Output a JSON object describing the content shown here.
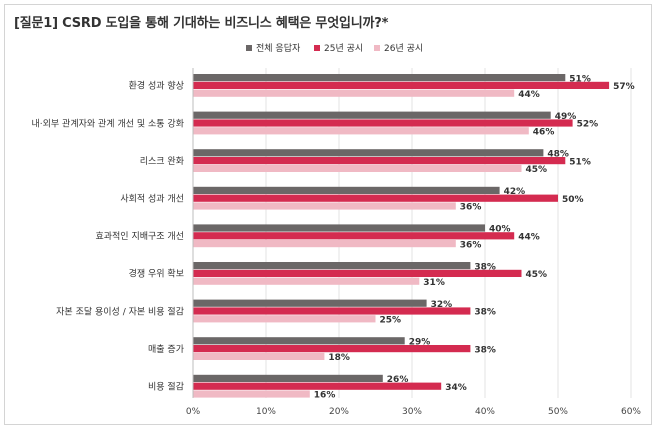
{
  "title": "[질문1] CSRD 도입을 통해 기대하는 비즈니스 혜택은 무엇입니까?*",
  "chart_data": {
    "type": "bar",
    "orientation": "horizontal",
    "categories": [
      "환경 성과 향상",
      "내·외부 관계자와 관계 개선 및 소통 강화",
      "리스크 완화",
      "사회적 성과 개선",
      "효과적인 지배구조 개선",
      "경쟁 우위 확보",
      "자본 조달 용이성 / 자본 비용 절감",
      "매출 증가",
      "비용 절감"
    ],
    "series": [
      {
        "name": "전체 응답자",
        "color": "#6b6767",
        "values": [
          51,
          49,
          48,
          42,
          40,
          38,
          32,
          29,
          26
        ]
      },
      {
        "name": "25년 공시",
        "color": "#d42b50",
        "values": [
          57,
          52,
          51,
          50,
          44,
          45,
          38,
          38,
          34
        ]
      },
      {
        "name": "26년 공시",
        "color": "#f0b9c4",
        "values": [
          44,
          46,
          45,
          36,
          36,
          31,
          25,
          18,
          16
        ]
      }
    ],
    "value_suffix": "%",
    "xlim": [
      0,
      60
    ],
    "xticks": [
      "0%",
      "10%",
      "20%",
      "30%",
      "40%",
      "50%",
      "60%"
    ],
    "legend_position": "top-right",
    "grid": true
  }
}
